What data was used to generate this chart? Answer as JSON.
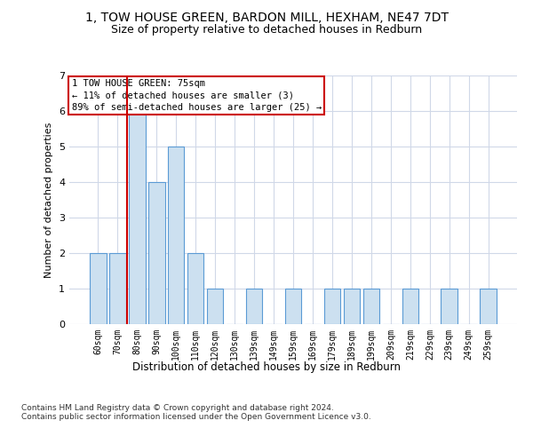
{
  "title": "1, TOW HOUSE GREEN, BARDON MILL, HEXHAM, NE47 7DT",
  "subtitle": "Size of property relative to detached houses in Redburn",
  "xlabel": "Distribution of detached houses by size in Redburn",
  "ylabel": "Number of detached properties",
  "bins": [
    "60sqm",
    "70sqm",
    "80sqm",
    "90sqm",
    "100sqm",
    "110sqm",
    "120sqm",
    "130sqm",
    "139sqm",
    "149sqm",
    "159sqm",
    "169sqm",
    "179sqm",
    "189sqm",
    "199sqm",
    "209sqm",
    "219sqm",
    "229sqm",
    "239sqm",
    "249sqm",
    "259sqm"
  ],
  "values": [
    2,
    2,
    6,
    4,
    5,
    2,
    1,
    0,
    1,
    0,
    1,
    0,
    1,
    1,
    1,
    0,
    1,
    0,
    1,
    0,
    1
  ],
  "bar_color": "#cce0f0",
  "bar_edge_color": "#5b9bd5",
  "subject_line_color": "#cc0000",
  "annotation_text": "1 TOW HOUSE GREEN: 75sqm\n← 11% of detached houses are smaller (3)\n89% of semi-detached houses are larger (25) →",
  "annotation_box_color": "#cc0000",
  "ylim": [
    0,
    7
  ],
  "yticks": [
    0,
    1,
    2,
    3,
    4,
    5,
    6,
    7
  ],
  "footer": "Contains HM Land Registry data © Crown copyright and database right 2024.\nContains public sector information licensed under the Open Government Licence v3.0.",
  "bg_color": "#ffffff",
  "grid_color": "#d0d8e8",
  "title_fontsize": 10,
  "subtitle_fontsize": 9,
  "ylabel_fontsize": 8,
  "tick_fontsize": 7,
  "ann_fontsize": 7.5,
  "footer_fontsize": 6.5
}
